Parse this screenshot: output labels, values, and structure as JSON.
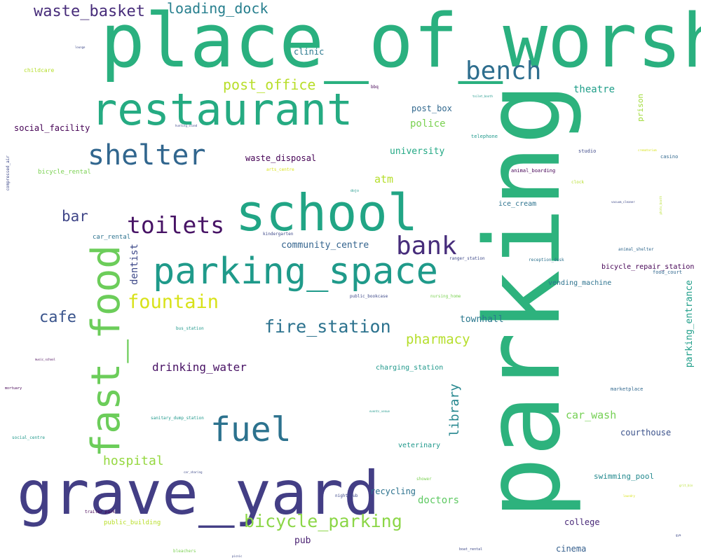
{
  "words": {
    "place_of_worship": {
      "text": "place_of_worship",
      "color": "#2ab07f"
    },
    "parking": {
      "text": "parking",
      "color": "#2db27d"
    },
    "grave_yard": {
      "text": "grave_yard",
      "color": "#433e85"
    },
    "restaurant": {
      "text": "restaurant",
      "color": "#25ab82"
    },
    "school": {
      "text": "school",
      "color": "#21a585"
    },
    "parking_space": {
      "text": "parking_space",
      "color": "#1f9a8a"
    },
    "fast_food": {
      "text": "fast_food",
      "color": "#6ccd5a"
    },
    "shelter": {
      "text": "shelter",
      "color": "#31668e"
    },
    "fuel": {
      "text": "fuel",
      "color": "#2c728e"
    },
    "bench": {
      "text": "bench",
      "color": "#2e6e8e"
    },
    "toilets": {
      "text": "toilets",
      "color": "#471365"
    },
    "bank": {
      "text": "bank",
      "color": "#472d7b"
    },
    "fountain": {
      "text": "fountain",
      "color": "#d8e219"
    },
    "waste_basket": {
      "text": "waste_basket",
      "color": "#472c7a"
    },
    "loading_dock": {
      "text": "loading_dock",
      "color": "#277f8e"
    },
    "post_office": {
      "text": "post_office",
      "color": "#b8de29"
    },
    "bicycle_parking": {
      "text": "bicycle_parking",
      "color": "#8bd646"
    },
    "fire_station": {
      "text": "fire_station",
      "color": "#2c728e"
    },
    "cafe": {
      "text": "cafe",
      "color": "#3a548c"
    },
    "bar": {
      "text": "bar",
      "color": "#404688"
    },
    "pharmacy": {
      "text": "pharmacy",
      "color": "#b5de2b"
    },
    "hospital": {
      "text": "hospital",
      "color": "#95d840"
    },
    "drinking_water": {
      "text": "drinking_water",
      "color": "#471164"
    },
    "library": {
      "text": "library",
      "color": "#24868e"
    },
    "dentist": {
      "text": "dentist",
      "color": "#3e4989"
    },
    "doctors": {
      "text": "doctors",
      "color": "#5ec962"
    },
    "car_wash": {
      "text": "car_wash",
      "color": "#75d054"
    },
    "theatre": {
      "text": "theatre",
      "color": "#1f9e89"
    },
    "clinic": {
      "text": "clinic",
      "color": "#2a788e"
    },
    "police": {
      "text": "police",
      "color": "#7ad151"
    },
    "university": {
      "text": "university",
      "color": "#22a884"
    },
    "post_box": {
      "text": "post_box",
      "color": "#31688e"
    },
    "social_facility": {
      "text": "social_facility",
      "color": "#440154"
    },
    "waste_disposal": {
      "text": "waste_disposal",
      "color": "#440154"
    },
    "atm": {
      "text": "atm",
      "color": "#b5de2b"
    },
    "community_centre": {
      "text": "community_centre",
      "color": "#33638d"
    },
    "townhall": {
      "text": "townhall",
      "color": "#2a788e"
    },
    "courthouse": {
      "text": "courthouse",
      "color": "#3b528b"
    },
    "recycling": {
      "text": "recycling",
      "color": "#2c728e"
    },
    "college": {
      "text": "college",
      "color": "#482878"
    },
    "pub": {
      "text": "pub",
      "color": "#481f70"
    },
    "cinema": {
      "text": "cinema",
      "color": "#355f8d"
    },
    "swimming_pool": {
      "text": "swimming_pool",
      "color": "#23898e"
    },
    "prison": {
      "text": "prison",
      "color": "#a0da39"
    },
    "parking_entrance": {
      "text": "parking_entrance",
      "color": "#1f9e89"
    },
    "charging_station": {
      "text": "charging_station",
      "color": "#1f988b"
    },
    "veterinary": {
      "text": "veterinary",
      "color": "#1f988b"
    },
    "ice_cream": {
      "text": "ice_cream",
      "color": "#2c728e"
    },
    "vending_machine": {
      "text": "vending_machine",
      "color": "#2c728e"
    },
    "bicycle_repair_station": {
      "text": "bicycle_repair_station",
      "color": "#440154"
    },
    "bicycle_rental": {
      "text": "bicycle_rental",
      "color": "#7ad151"
    },
    "childcare": {
      "text": "childcare",
      "color": "#b5de2b"
    },
    "car_rental": {
      "text": "car_rental",
      "color": "#2c728e"
    },
    "compressed_air": {
      "text": "compressed_air",
      "color": "#3e4989"
    },
    "public_building": {
      "text": "public_building",
      "color": "#b8de29"
    },
    "marketplace": {
      "text": "marketplace",
      "color": "#31688e"
    },
    "studio": {
      "text": "studio",
      "color": "#3e4989"
    },
    "casino": {
      "text": "casino",
      "color": "#31688e"
    },
    "animal_boarding": {
      "text": "animal_boarding",
      "color": "#440154"
    },
    "animal_shelter": {
      "text": "animal_shelter",
      "color": "#31688e"
    },
    "food_court": {
      "text": "food_court",
      "color": "#31688e"
    },
    "reception_desk": {
      "text": "reception_desk",
      "color": "#2c728e"
    },
    "ranger_station": {
      "text": "ranger_station",
      "color": "#3e4989"
    },
    "kindergarten": {
      "text": "kindergarten",
      "color": "#3e4989"
    },
    "public_bookcase": {
      "text": "public_bookcase",
      "color": "#3e4989"
    },
    "nursing_home": {
      "text": "nursing_home",
      "color": "#7ad151"
    },
    "bus_station": {
      "text": "bus_station",
      "color": "#1f988b"
    },
    "telephone": {
      "text": "telephone",
      "color": "#1f988b"
    },
    "bbq": {
      "text": "bbq",
      "color": "#440154"
    },
    "clock": {
      "text": "clock",
      "color": "#b5de2b"
    },
    "arts_centre": {
      "text": "arts_centre",
      "color": "#d8e219"
    },
    "sanitary_dump_station": {
      "text": "sanitary_dump_station",
      "color": "#1f988b"
    },
    "social_centre": {
      "text": "social_centre",
      "color": "#1f988b"
    },
    "mortuary": {
      "text": "mortuary",
      "color": "#440154"
    },
    "trailer_park": {
      "text": "trailer_park",
      "color": "#440154"
    },
    "nightclub": {
      "text": "nightclub",
      "color": "#3e4989"
    },
    "shower": {
      "text": "shower",
      "color": "#7ad151"
    },
    "bleachers": {
      "text": "bleachers",
      "color": "#7ad151"
    },
    "boat_rental": {
      "text": "boat_rental",
      "color": "#3e4989"
    },
    "dojo": {
      "text": "dojo",
      "color": "#1f988b"
    },
    "car_sharing": {
      "text": "car_sharing",
      "color": "#3e4989"
    },
    "events_venue": {
      "text": "events_venue",
      "color": "#1f988b"
    },
    "music_school": {
      "text": "music_school",
      "color": "#440154"
    },
    "toilet_booth": {
      "text": "toilet_booth",
      "color": "#1f988b"
    },
    "vacuum_cleaner": {
      "text": "vacuum_cleaner",
      "color": "#3e4989"
    },
    "lounge": {
      "text": "lounge",
      "color": "#3e4989"
    },
    "hunting_stand": {
      "text": "hunting_stand",
      "color": "#3e4989"
    },
    "crematorium": {
      "text": "crematorium",
      "color": "#d8e219"
    },
    "photo_booth": {
      "text": "photo_booth",
      "color": "#b5de2b"
    },
    "laundry": {
      "text": "laundry",
      "color": "#d8e219"
    },
    "grit_bin": {
      "text": "grit_bin",
      "color": "#b5de2b"
    },
    "gym": {
      "text": "gym",
      "color": "#3e4989"
    },
    "picnic": {
      "text": "picnic",
      "color": "#3e4989"
    }
  }
}
